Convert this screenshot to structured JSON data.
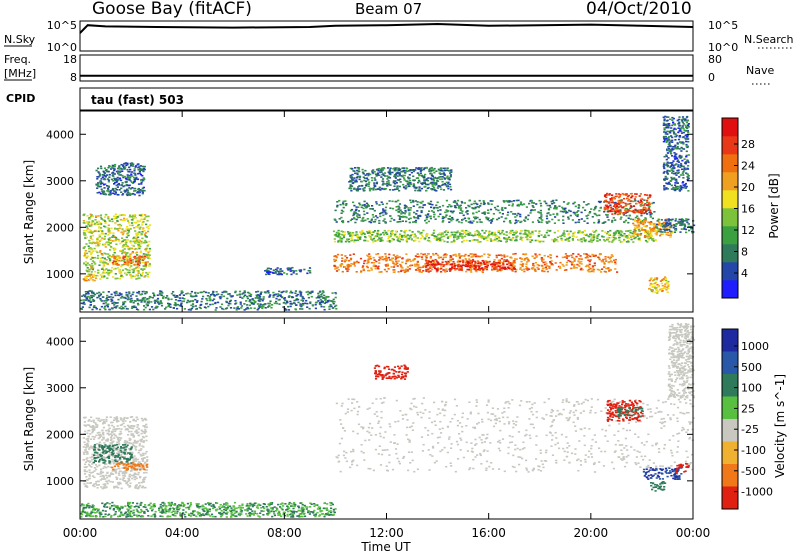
{
  "header": {
    "station": "Goose Bay (fitACF)",
    "beam": "Beam 07",
    "date": "04/Oct/2010"
  },
  "strips": {
    "nsky_label": "N.Sky",
    "nsearch_label": "N.Search",
    "nsky_ticks": [
      "10^5",
      "10^0"
    ],
    "nsearch_ticks": [
      "10^5",
      "10^0"
    ],
    "freq_label_1": "Freq.",
    "freq_label_2": "[MHz]",
    "freq_ticks": [
      "18",
      "8"
    ],
    "nave_label": "Nave",
    "nave_ticks": [
      "80",
      "0"
    ],
    "cpid_label": "CPID",
    "cpid_text": "tau (fast) 503"
  },
  "axes": {
    "ylabel": "Slant Range [km]",
    "xlabel": "Time UT",
    "yticks": [
      "4000",
      "3000",
      "2000",
      "1000"
    ],
    "xticks": [
      "00:00",
      "04:00",
      "08:00",
      "12:00",
      "16:00",
      "20:00",
      "00:00"
    ]
  },
  "power_scale": {
    "label": "Power [dB]",
    "ticks": [
      "28",
      "24",
      "20",
      "16",
      "12",
      "8",
      "4"
    ],
    "colors": [
      "#1e1eff",
      "#2446a8",
      "#2e7a5a",
      "#3aa040",
      "#7cc23a",
      "#f0e020",
      "#f0a020",
      "#f07010",
      "#e83818",
      "#e01010"
    ]
  },
  "velocity_scale": {
    "label": "Velocity [m s^-1]",
    "ticks": [
      "1000",
      "500",
      "100",
      "25",
      "-25",
      "-100",
      "-500",
      "-1000"
    ],
    "colors": [
      "#1e2aa0",
      "#2a58a8",
      "#2e7a5a",
      "#58c040",
      "#c8c8c0",
      "#f0b030",
      "#f07818",
      "#e02010"
    ]
  },
  "chart_data": [
    {
      "type": "line",
      "title": "N.Sky / N.Search",
      "x_range_hours": [
        0,
        24
      ],
      "ylim_log10": [
        0,
        5
      ],
      "series": [
        {
          "name": "N.Sky",
          "x": [
            0,
            0.3,
            1,
            3,
            6,
            9,
            10,
            12,
            14,
            16,
            18,
            20,
            22,
            23,
            24
          ],
          "y_log10": [
            3.0,
            4.3,
            4.1,
            4.0,
            3.9,
            4.0,
            4.2,
            4.3,
            4.5,
            4.2,
            4.3,
            4.4,
            4.2,
            4.1,
            4.0
          ]
        }
      ]
    },
    {
      "type": "line",
      "title": "Freq. [MHz] / Nave",
      "x_range_hours": [
        0,
        24
      ],
      "ylim": [
        8,
        18
      ],
      "series": [
        {
          "name": "Freq.",
          "x": [
            0,
            24
          ],
          "y": [
            10,
            10
          ]
        }
      ]
    },
    {
      "type": "heatmap",
      "title": "Power [dB]",
      "xlabel": "Time UT",
      "ylabel": "Slant Range [km]",
      "x_range_hours": [
        0,
        24
      ],
      "ylim": [
        180,
        4500
      ],
      "clim": [
        0,
        30
      ],
      "regions": [
        {
          "t": [
            0.1,
            2.7
          ],
          "r": [
            900,
            2300
          ],
          "v": 15
        },
        {
          "t": [
            1.2,
            2.6
          ],
          "r": [
            1200,
            1400
          ],
          "v": 22
        },
        {
          "t": [
            0.1,
            0.6
          ],
          "r": [
            870,
            1000
          ],
          "v": 20
        },
        {
          "t": [
            0.6,
            2.5
          ],
          "r": [
            2700,
            3400
          ],
          "v": 6
        },
        {
          "t": [
            0.0,
            10.0
          ],
          "r": [
            240,
            650
          ],
          "v": 7
        },
        {
          "t": [
            7.2,
            9.0
          ],
          "r": [
            1000,
            1150
          ],
          "v": 6
        },
        {
          "t": [
            9.9,
            22.5
          ],
          "r": [
            2100,
            2600
          ],
          "v": 8
        },
        {
          "t": [
            9.9,
            22.5
          ],
          "r": [
            1700,
            1950
          ],
          "v": 13
        },
        {
          "t": [
            9.9,
            21.0
          ],
          "r": [
            1050,
            1450
          ],
          "v": 22
        },
        {
          "t": [
            13.5,
            17.0
          ],
          "r": [
            1100,
            1300
          ],
          "v": 27
        },
        {
          "t": [
            10.5,
            14.5
          ],
          "r": [
            2800,
            3300
          ],
          "v": 7
        },
        {
          "t": [
            20.5,
            22.3
          ],
          "r": [
            2300,
            2750
          ],
          "v": 25
        },
        {
          "t": [
            21.6,
            23.2
          ],
          "r": [
            1800,
            2200
          ],
          "v": 20
        },
        {
          "t": [
            22.2,
            23.0
          ],
          "r": [
            600,
            950
          ],
          "v": 18
        },
        {
          "t": [
            22.5,
            24.0
          ],
          "r": [
            1900,
            2200
          ],
          "v": 7
        },
        {
          "t": [
            22.8,
            23.8
          ],
          "r": [
            2800,
            4400
          ],
          "v": 6
        }
      ]
    },
    {
      "type": "heatmap",
      "title": "Velocity [m s^-1]",
      "xlabel": "Time UT",
      "ylabel": "Slant Range [km]",
      "x_range_hours": [
        0,
        24
      ],
      "ylim": [
        180,
        4500
      ],
      "clim": [
        -1000,
        1000
      ],
      "regions": [
        {
          "t": [
            0.1,
            2.6
          ],
          "r": [
            850,
            2400
          ],
          "v": 0
        },
        {
          "t": [
            0.5,
            2.0
          ],
          "r": [
            1400,
            1800
          ],
          "v": 80
        },
        {
          "t": [
            1.2,
            2.6
          ],
          "r": [
            1250,
            1400
          ],
          "v": -120
        },
        {
          "t": [
            0.0,
            10.0
          ],
          "r": [
            240,
            550
          ],
          "v": 60
        },
        {
          "t": [
            10.0,
            24.0
          ],
          "r": [
            1200,
            2800
          ],
          "v": 0
        },
        {
          "t": [
            11.5,
            12.8
          ],
          "r": [
            3200,
            3500
          ],
          "v": -400
        },
        {
          "t": [
            20.6,
            22.0
          ],
          "r": [
            2300,
            2750
          ],
          "v": -300
        },
        {
          "t": [
            21.0,
            22.0
          ],
          "r": [
            2400,
            2600
          ],
          "v": 120
        },
        {
          "t": [
            22.0,
            23.5
          ],
          "r": [
            1050,
            1300
          ],
          "v": 600
        },
        {
          "t": [
            22.3,
            22.9
          ],
          "r": [
            800,
            1000
          ],
          "v": 150
        },
        {
          "t": [
            23.3,
            23.8
          ],
          "r": [
            1200,
            1400
          ],
          "v": -600
        },
        {
          "t": [
            23.0,
            24.0
          ],
          "r": [
            2800,
            4400
          ],
          "v": 0
        }
      ]
    }
  ]
}
